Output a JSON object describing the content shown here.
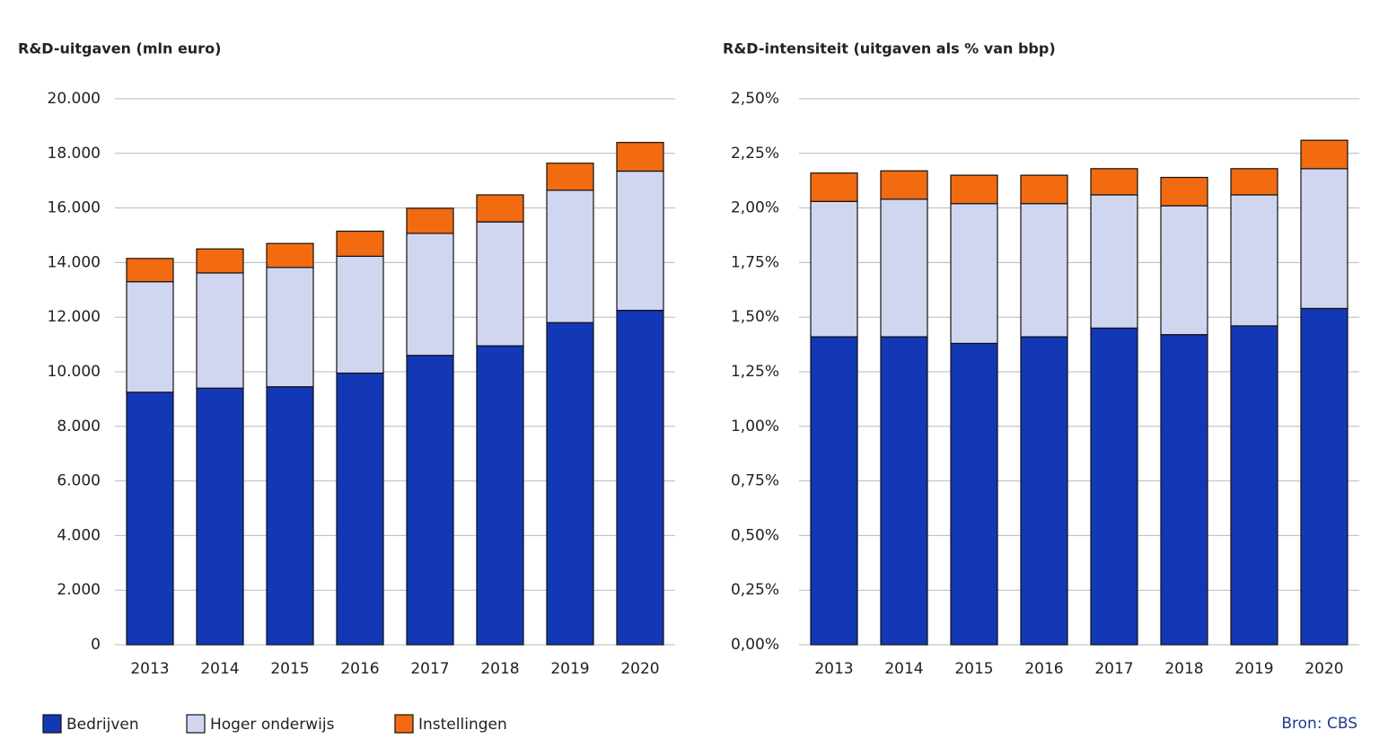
{
  "chart_data": [
    {
      "type": "stacked_bar",
      "title": "R&D-uitgaven (mln euro)",
      "categories": [
        "2013",
        "2014",
        "2015",
        "2016",
        "2017",
        "2018",
        "2019",
        "2020"
      ],
      "series": [
        {
          "name": "Bedrijven",
          "color": "#1338b5",
          "values": [
            9250,
            9400,
            9450,
            9950,
            10600,
            10950,
            11800,
            12250
          ]
        },
        {
          "name": "Hoger onderwijs",
          "color": "#d0d6f0",
          "values": [
            4050,
            4220,
            4370,
            4280,
            4470,
            4540,
            4850,
            5100
          ]
        },
        {
          "name": "Instellingen",
          "color": "#f26b10",
          "values": [
            850,
            880,
            880,
            920,
            920,
            990,
            990,
            1050
          ]
        }
      ],
      "ylim": [
        0,
        20000
      ],
      "yticks": [
        0,
        {
          "value": 2000,
          "label": "2.000"
        },
        {
          "value": 4000,
          "label": "4.000"
        },
        {
          "value": 6000,
          "label": "6.000"
        },
        {
          "value": 8000,
          "label": "8.000"
        },
        {
          "value": 10000,
          "label": "10.000"
        },
        {
          "value": 12000,
          "label": "12.000"
        },
        {
          "value": 14000,
          "label": "14.000"
        },
        {
          "value": 16000,
          "label": "16.000"
        },
        {
          "value": 18000,
          "label": "18.000"
        },
        {
          "value": 20000,
          "label": "20.000"
        }
      ],
      "grid": true
    },
    {
      "type": "stacked_bar",
      "title": "R&D-intensiteit (uitgaven als % van bbp)",
      "categories": [
        "2013",
        "2014",
        "2015",
        "2016",
        "2017",
        "2018",
        "2019",
        "2020"
      ],
      "series": [
        {
          "name": "Bedrijven",
          "color": "#1338b5",
          "values": [
            1.41,
            1.41,
            1.38,
            1.41,
            1.45,
            1.42,
            1.46,
            1.54
          ]
        },
        {
          "name": "Hoger onderwijs",
          "color": "#d0d6f0",
          "values": [
            0.62,
            0.63,
            0.64,
            0.61,
            0.61,
            0.59,
            0.6,
            0.64
          ]
        },
        {
          "name": "Instellingen",
          "color": "#f26b10",
          "values": [
            0.13,
            0.13,
            0.13,
            0.13,
            0.12,
            0.13,
            0.12,
            0.13
          ]
        }
      ],
      "ylim": [
        0,
        2.5
      ],
      "yticks": [
        {
          "value": 0,
          "label": "0,00%"
        },
        {
          "value": 0.25,
          "label": "0,25%"
        },
        {
          "value": 0.5,
          "label": "0,50%"
        },
        {
          "value": 0.75,
          "label": "0,75%"
        },
        {
          "value": 1,
          "label": "1,00%"
        },
        {
          "value": 1.25,
          "label": "1,25%"
        },
        {
          "value": 1.5,
          "label": "1,50%"
        },
        {
          "value": 1.75,
          "label": "1,75%"
        },
        {
          "value": 2,
          "label": "2,00%"
        },
        {
          "value": 2.25,
          "label": "2,25%"
        },
        {
          "value": 2.5,
          "label": "2,50%"
        }
      ],
      "grid": true
    }
  ],
  "source": "Bron: CBS"
}
